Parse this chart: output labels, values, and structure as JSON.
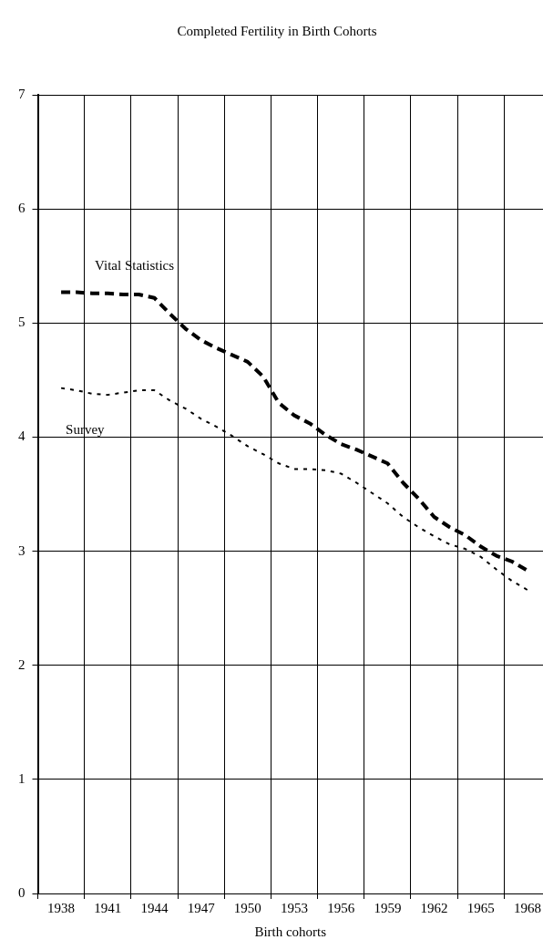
{
  "chart_data": {
    "type": "line",
    "title": "Completed Fertility in Birth Cohorts",
    "xlabel": "Birth cohorts",
    "x": [
      1938,
      1939,
      1940,
      1941,
      1942,
      1943,
      1944,
      1945,
      1946,
      1947,
      1948,
      1949,
      1950,
      1951,
      1952,
      1953,
      1954,
      1955,
      1956,
      1957,
      1958,
      1959,
      1960,
      1961,
      1962,
      1963,
      1964,
      1965,
      1966,
      1967,
      1968
    ],
    "series": [
      {
        "name": "Vital Statistics",
        "color": "#000000",
        "line_style": "dashed",
        "values": [
          5.27,
          5.27,
          5.26,
          5.26,
          5.25,
          5.25,
          5.22,
          5.08,
          4.95,
          4.85,
          4.78,
          4.72,
          4.66,
          4.53,
          4.3,
          4.19,
          4.12,
          4.02,
          3.94,
          3.89,
          3.83,
          3.77,
          3.6,
          3.46,
          3.3,
          3.21,
          3.14,
          3.04,
          2.96,
          2.91,
          2.83
        ]
      },
      {
        "name": "Survey",
        "color": "#000000",
        "line_style": "dotted",
        "values": [
          4.43,
          4.41,
          4.38,
          4.37,
          4.39,
          4.41,
          4.41,
          4.32,
          4.25,
          4.16,
          4.09,
          4.01,
          3.92,
          3.85,
          3.77,
          3.72,
          3.72,
          3.71,
          3.68,
          3.6,
          3.51,
          3.42,
          3.3,
          3.21,
          3.13,
          3.06,
          3.02,
          2.95,
          2.84,
          2.74,
          2.66
        ]
      }
    ],
    "xlim": [
      1936.5,
      1969
    ],
    "xticks": [
      {
        "value": 1936.5,
        "label": null
      },
      1938,
      {
        "value": 1939.5,
        "label": null
      },
      1941,
      {
        "value": 1942.5,
        "label": null
      },
      1944,
      {
        "value": 1945.5,
        "label": null
      },
      1947,
      {
        "value": 1948.5,
        "label": null
      },
      1950,
      {
        "value": 1951.5,
        "label": null
      },
      1953,
      {
        "value": 1954.5,
        "label": null
      },
      1956,
      {
        "value": 1957.5,
        "label": null
      },
      1959,
      {
        "value": 1960.5,
        "label": null
      },
      1962,
      {
        "value": 1963.5,
        "label": null
      },
      1965,
      {
        "value": 1966.5,
        "label": null
      },
      1968
    ],
    "ylim": [
      0,
      7
    ],
    "yticks": [
      0,
      1,
      2,
      3,
      4,
      5,
      6,
      7
    ],
    "grid": true,
    "legend": false,
    "marker": "none"
  }
}
